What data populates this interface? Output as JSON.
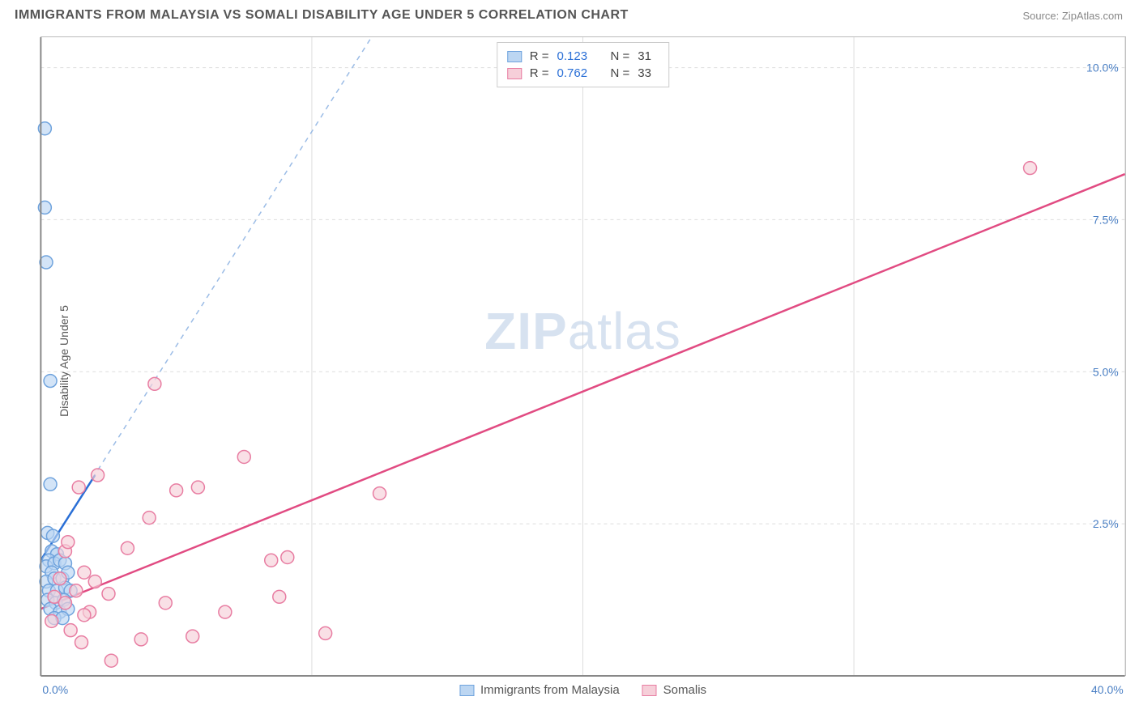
{
  "title": "IMMIGRANTS FROM MALAYSIA VS SOMALI DISABILITY AGE UNDER 5 CORRELATION CHART",
  "source": "Source: ZipAtlas.com",
  "ylabel": "Disability Age Under 5",
  "watermark_a": "ZIP",
  "watermark_b": "atlas",
  "chart": {
    "type": "scatter",
    "xlim": [
      0,
      40
    ],
    "ylim": [
      0,
      10.5
    ],
    "yticks": [
      {
        "v": 2.5,
        "label": "2.5%"
      },
      {
        "v": 5.0,
        "label": "5.0%"
      },
      {
        "v": 7.5,
        "label": "7.5%"
      },
      {
        "v": 10.0,
        "label": "10.0%"
      }
    ],
    "xticks": [
      {
        "v": 0,
        "label": "0.0%",
        "pos": "first"
      },
      {
        "v": 10,
        "label": ""
      },
      {
        "v": 20,
        "label": ""
      },
      {
        "v": 30,
        "label": ""
      },
      {
        "v": 40,
        "label": "40.0%",
        "pos": "last"
      }
    ],
    "background_color": "#ffffff",
    "grid_color": "#dddddd",
    "marker_radius": 8,
    "marker_stroke_width": 1.5,
    "series": [
      {
        "name": "Immigrants from Malaysia",
        "fill": "#bcd6f2",
        "stroke": "#6fa3dd",
        "R": "0.123",
        "N": "31",
        "trend_solid": {
          "x1": 0,
          "y1": 1.9,
          "x2": 2.0,
          "y2": 3.3,
          "color": "#2a6fd6",
          "width": 2.5
        },
        "trend_dash": {
          "x1": 0,
          "y1": 1.9,
          "x2": 12.2,
          "y2": 10.5,
          "color": "#9bbce6",
          "width": 1.5
        },
        "points": [
          [
            0.15,
            9.0
          ],
          [
            0.15,
            7.7
          ],
          [
            0.2,
            6.8
          ],
          [
            0.35,
            4.85
          ],
          [
            0.35,
            3.15
          ],
          [
            0.25,
            2.35
          ],
          [
            0.45,
            2.3
          ],
          [
            0.4,
            2.05
          ],
          [
            0.6,
            2.0
          ],
          [
            0.3,
            1.9
          ],
          [
            0.2,
            1.8
          ],
          [
            0.5,
            1.85
          ],
          [
            0.7,
            1.9
          ],
          [
            0.9,
            1.85
          ],
          [
            0.4,
            1.7
          ],
          [
            0.2,
            1.55
          ],
          [
            0.5,
            1.6
          ],
          [
            0.8,
            1.6
          ],
          [
            1.0,
            1.7
          ],
          [
            0.3,
            1.4
          ],
          [
            0.6,
            1.4
          ],
          [
            0.9,
            1.45
          ],
          [
            1.1,
            1.4
          ],
          [
            0.25,
            1.25
          ],
          [
            0.55,
            1.2
          ],
          [
            0.85,
            1.25
          ],
          [
            0.35,
            1.1
          ],
          [
            0.7,
            1.05
          ],
          [
            1.0,
            1.1
          ],
          [
            0.5,
            0.95
          ],
          [
            0.8,
            0.95
          ]
        ]
      },
      {
        "name": "Somalis",
        "fill": "#f6cfd9",
        "stroke": "#e87da2",
        "R": "0.762",
        "N": "33",
        "trend_solid": {
          "x1": 0,
          "y1": 1.1,
          "x2": 40,
          "y2": 8.25,
          "color": "#e14b82",
          "width": 2.5
        },
        "points": [
          [
            36.5,
            8.35
          ],
          [
            4.2,
            4.8
          ],
          [
            12.5,
            3.0
          ],
          [
            7.5,
            3.6
          ],
          [
            5.8,
            3.1
          ],
          [
            5.0,
            3.05
          ],
          [
            2.1,
            3.3
          ],
          [
            1.4,
            3.1
          ],
          [
            4.0,
            2.6
          ],
          [
            3.2,
            2.1
          ],
          [
            8.5,
            1.9
          ],
          [
            9.1,
            1.95
          ],
          [
            8.8,
            1.3
          ],
          [
            10.5,
            0.7
          ],
          [
            6.8,
            1.05
          ],
          [
            5.6,
            0.65
          ],
          [
            4.6,
            1.2
          ],
          [
            3.7,
            0.6
          ],
          [
            2.6,
            0.25
          ],
          [
            1.8,
            1.05
          ],
          [
            1.6,
            1.7
          ],
          [
            0.9,
            2.05
          ],
          [
            1.0,
            2.2
          ],
          [
            0.7,
            1.6
          ],
          [
            0.5,
            1.3
          ],
          [
            0.9,
            1.2
          ],
          [
            1.3,
            1.4
          ],
          [
            1.6,
            1.0
          ],
          [
            2.0,
            1.55
          ],
          [
            2.5,
            1.35
          ],
          [
            0.4,
            0.9
          ],
          [
            1.1,
            0.75
          ],
          [
            1.5,
            0.55
          ]
        ]
      }
    ],
    "legend_bottom": [
      {
        "label": "Immigrants from Malaysia",
        "fill": "#bcd6f2",
        "stroke": "#6fa3dd"
      },
      {
        "label": "Somalis",
        "fill": "#f6cfd9",
        "stroke": "#e87da2"
      }
    ]
  }
}
